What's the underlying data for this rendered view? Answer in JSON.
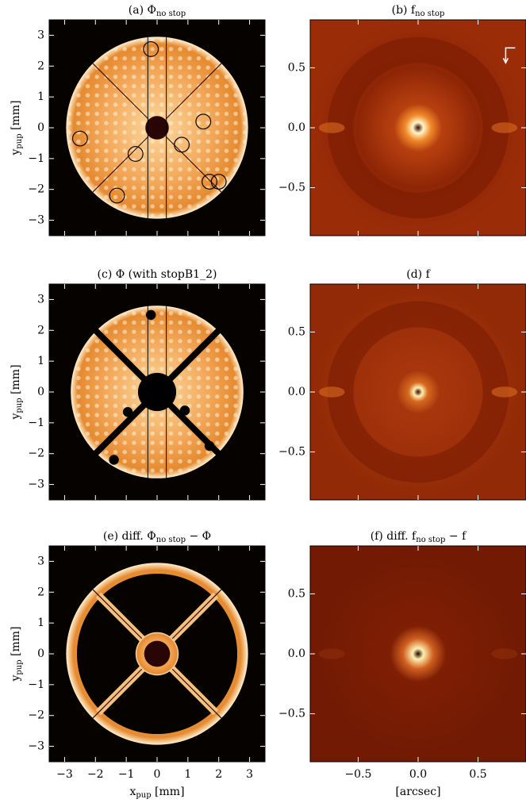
{
  "panels": [
    {
      "title": [
        "(a) Φ",
        "no stop"
      ]
    },
    {
      "title": [
        "(b) f",
        "no stop"
      ]
    },
    {
      "title": [
        "(c) Φ (with stopB1_2)"
      ]
    },
    {
      "title": [
        "(d) f"
      ]
    },
    {
      "title": [
        "(e) diff. Φ",
        "no stop",
        " − Φ"
      ]
    },
    {
      "title": [
        "(f) diff. f",
        "no stop",
        " − f"
      ]
    }
  ],
  "left_axes": {
    "xlim": [
      -3.5,
      3.5
    ],
    "ylim": [
      -3.5,
      3.5
    ],
    "xticks": [
      {
        "value": -3,
        "label": "−3"
      },
      {
        "value": -2,
        "label": "−2"
      },
      {
        "value": -1,
        "label": "−1"
      },
      0,
      1,
      2,
      3
    ],
    "yticks": [
      {
        "value": -3,
        "label": "−3"
      },
      {
        "value": -2,
        "label": "−2"
      },
      {
        "value": -1,
        "label": "−1"
      },
      0,
      1,
      2,
      3
    ],
    "xlabel": [
      "x",
      "pup",
      " [mm]"
    ],
    "ylabel": [
      "y",
      "pup",
      " [mm]"
    ]
  },
  "right_axes": {
    "xlim": [
      -0.9,
      0.9
    ],
    "ylim": [
      -0.9,
      0.9
    ],
    "xticks": [
      {
        "value": -0.5,
        "label": "−0.5"
      },
      {
        "value": 0,
        "label": "0.0"
      },
      {
        "value": 0.5,
        "label": "0.5"
      }
    ],
    "yticks": [
      {
        "value": -0.5,
        "label": "−0.5"
      },
      {
        "value": 0,
        "label": "0.0"
      },
      {
        "value": 0.5,
        "label": "0.5"
      }
    ],
    "xlabel": [
      "[arcsec]"
    ]
  }
}
